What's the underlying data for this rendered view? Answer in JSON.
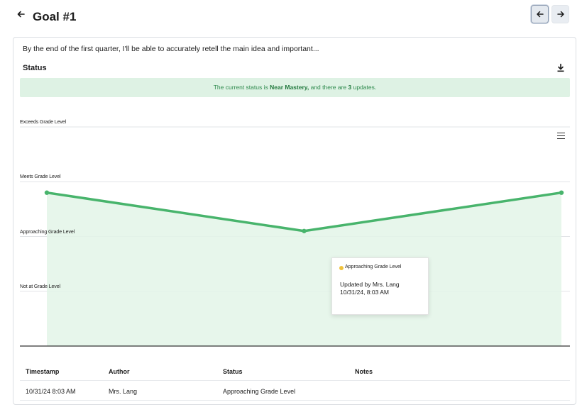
{
  "header": {
    "title": "Goal #1",
    "back_icon": "arrow-left-icon",
    "prev_icon": "arrow-left-icon",
    "next_icon": "arrow-right-icon"
  },
  "goal": {
    "description": "By the end of the first quarter, I'll be able to accurately retell the main idea and important..."
  },
  "status_section": {
    "heading": "Status",
    "download_icon": "download-icon",
    "banner": {
      "prefix": "The current status is ",
      "status": "Near Mastery,",
      "middle": " and there are ",
      "count": "3",
      "suffix": " updates."
    }
  },
  "chart_data": {
    "type": "area",
    "levels": [
      "Not at Grade Level",
      "Approaching Grade Level",
      "Meets Grade Level",
      "Exceeds Grade Level"
    ],
    "series": [
      {
        "values": [
          2.8,
          2.1,
          2.8
        ]
      }
    ],
    "x_labels_hidden": 4,
    "ylim": [
      0,
      4
    ],
    "grid": true,
    "colors": {
      "line": "#48b46c",
      "fill": "#e3f4e8",
      "tooltip_dot": "#f0c23b"
    },
    "menu_icon": "hamburger-menu-icon",
    "tooltip": {
      "level": "Approaching Grade Level",
      "author": "Updated by Mrs. Lang",
      "date": "10/31/24, 8:03 AM"
    }
  },
  "table": {
    "headers": [
      "Timestamp",
      "Author",
      "Status",
      "Notes"
    ],
    "rows": [
      [
        "10/31/24 8:03 AM",
        "Mrs. Lang",
        "Approaching Grade Level",
        ""
      ]
    ]
  }
}
